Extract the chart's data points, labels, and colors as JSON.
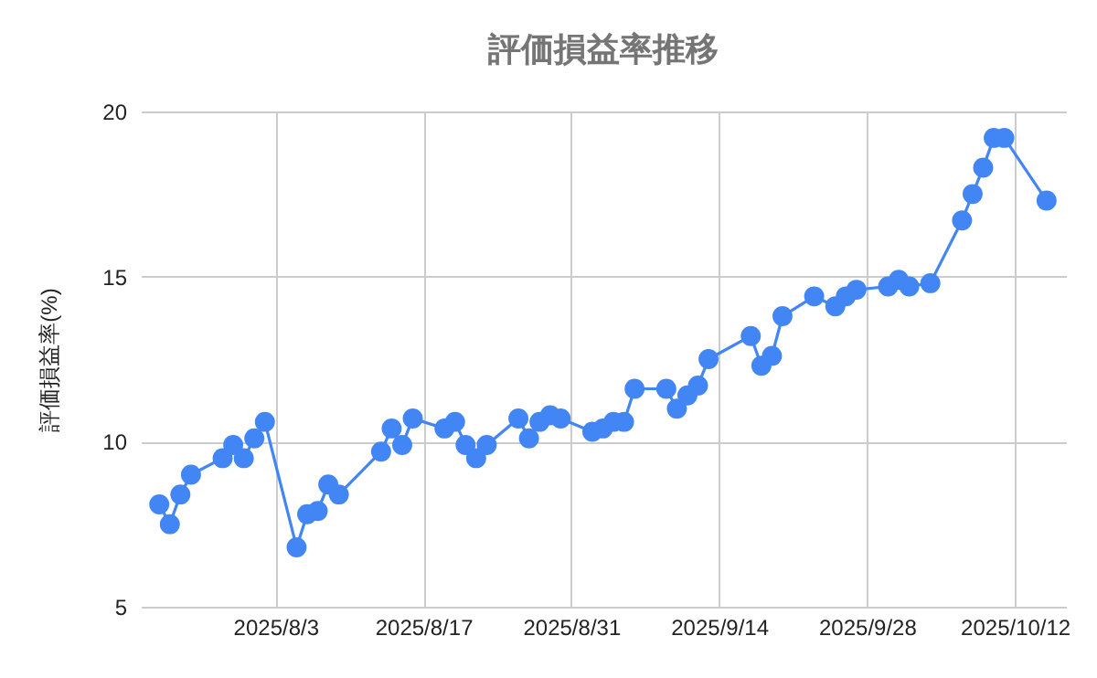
{
  "chart_data": {
    "type": "line",
    "title": "評価損益率推移",
    "ylabel": "評価損益率(%)",
    "x": [
      "2025-07-23",
      "2025-07-24",
      "2025-07-25",
      "2025-07-26",
      "2025-07-29",
      "2025-07-30",
      "2025-07-31",
      "2025-08-01",
      "2025-08-02",
      "2025-08-05",
      "2025-08-06",
      "2025-08-07",
      "2025-08-08",
      "2025-08-09",
      "2025-08-13",
      "2025-08-14",
      "2025-08-15",
      "2025-08-16",
      "2025-08-19",
      "2025-08-20",
      "2025-08-21",
      "2025-08-22",
      "2025-08-23",
      "2025-08-26",
      "2025-08-27",
      "2025-08-28",
      "2025-08-29",
      "2025-08-30",
      "2025-09-02",
      "2025-09-03",
      "2025-09-04",
      "2025-09-05",
      "2025-09-06",
      "2025-09-09",
      "2025-09-10",
      "2025-09-11",
      "2025-09-12",
      "2025-09-13",
      "2025-09-17",
      "2025-09-18",
      "2025-09-19",
      "2025-09-20",
      "2025-09-23",
      "2025-09-25",
      "2025-09-26",
      "2025-09-27",
      "2025-09-30",
      "2025-10-01",
      "2025-10-02",
      "2025-10-04",
      "2025-10-07",
      "2025-10-08",
      "2025-10-09",
      "2025-10-10",
      "2025-10-11",
      "2025-10-15"
    ],
    "series": [
      {
        "color": "#4285f4",
        "values": [
          8.1,
          7.5,
          8.4,
          9.0,
          9.5,
          9.9,
          9.5,
          10.1,
          10.6,
          6.8,
          7.8,
          7.9,
          8.7,
          8.4,
          9.7,
          10.4,
          9.9,
          10.7,
          10.4,
          10.6,
          9.9,
          9.5,
          9.9,
          10.7,
          10.1,
          10.6,
          10.8,
          10.7,
          10.3,
          10.4,
          10.6,
          10.6,
          11.6,
          11.6,
          11.0,
          11.4,
          11.7,
          12.5,
          13.2,
          12.3,
          12.6,
          13.8,
          14.4,
          14.1,
          14.4,
          14.6,
          14.7,
          14.9,
          14.7,
          14.8,
          16.7,
          17.5,
          18.3,
          19.2,
          19.2,
          17.3
        ]
      }
    ],
    "xlim": [
      "2025-07-21T06:00",
      "2025-10-16T20:00"
    ],
    "xticks": [
      {
        "value": "2025-08-03",
        "label": "2025/8/3"
      },
      {
        "value": "2025-08-17",
        "label": "2025/8/17"
      },
      {
        "value": "2025-08-31",
        "label": "2025/8/31"
      },
      {
        "value": "2025-09-14",
        "label": "2025/9/14"
      },
      {
        "value": "2025-09-28",
        "label": "2025/9/28"
      },
      {
        "value": "2025-10-12",
        "label": "2025/10/12"
      }
    ],
    "ylim": [
      5,
      20
    ],
    "yticks": [
      5,
      10,
      15,
      20
    ],
    "grid": true,
    "marker": "circle",
    "line_style": "solid"
  }
}
